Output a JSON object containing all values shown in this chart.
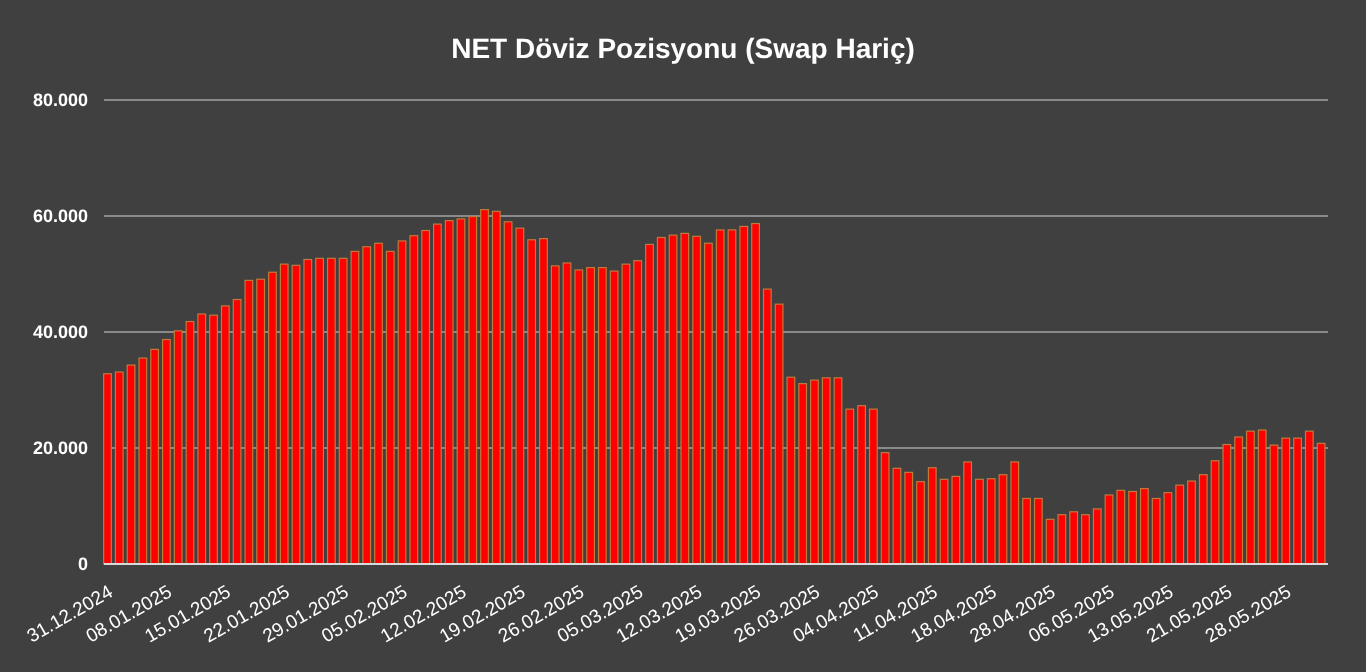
{
  "chart_data": {
    "type": "bar",
    "title": "NET Döviz Pozisyonu (Swap Hariç)",
    "categories": [
      "31.12.2024",
      null,
      null,
      null,
      null,
      "08.01.2025",
      null,
      null,
      null,
      null,
      "15.01.2025",
      null,
      null,
      null,
      null,
      "22.01.2025",
      null,
      null,
      null,
      null,
      "29.01.2025",
      null,
      null,
      null,
      null,
      "05.02.2025",
      null,
      null,
      null,
      null,
      "12.02.2025",
      null,
      null,
      null,
      null,
      "19.02.2025",
      null,
      null,
      null,
      null,
      "26.02.2025",
      null,
      null,
      null,
      null,
      "05.03.2025",
      null,
      null,
      null,
      null,
      "12.03.2025",
      null,
      null,
      null,
      null,
      "19.03.2025",
      null,
      null,
      null,
      null,
      "26.03.2025",
      null,
      null,
      null,
      null,
      "04.04.2025",
      null,
      null,
      null,
      null,
      "11.04.2025",
      null,
      null,
      null,
      null,
      "18.04.2025",
      null,
      null,
      null,
      null,
      "28.04.2025",
      null,
      null,
      null,
      null,
      "06.05.2025",
      null,
      null,
      null,
      null,
      "13.05.2025",
      null,
      null,
      null,
      null,
      "21.05.2025",
      null,
      null,
      null,
      null,
      "28.05.2025",
      null,
      null,
      null
    ],
    "series": [
      {
        "color": "#ff0000",
        "values": [
          32800,
          33100,
          34300,
          35500,
          37000,
          38700,
          40200,
          41800,
          43100,
          42900,
          44500,
          45600,
          48900,
          49100,
          50300,
          51700,
          51500,
          52500,
          52700,
          52700,
          52700,
          53900,
          54700,
          55300,
          53900,
          55700,
          56600,
          57500,
          58600,
          59200,
          59500,
          59900,
          61100,
          60800,
          59000,
          57900,
          55900,
          56100,
          51400,
          51900,
          50700,
          51100,
          51100,
          50500,
          51700,
          52300,
          55100,
          56300,
          56700,
          57000,
          56500,
          55300,
          57600,
          57600,
          58200,
          58700,
          47400,
          44800,
          32200,
          31100,
          31700,
          32100,
          32100,
          26700,
          27300,
          26700,
          19200,
          16500,
          15800,
          14200,
          16600,
          14600,
          15100,
          17600,
          14600,
          14700,
          15400,
          17600,
          11300,
          11300,
          7700,
          8500,
          9000,
          8500,
          9500,
          11900,
          12700,
          12500,
          13000,
          11300,
          12300,
          13600,
          14300,
          15400,
          17800,
          20600,
          21900,
          22900,
          23100,
          20500,
          21700,
          21700,
          22900,
          20800
        ]
      }
    ],
    "ylim": [
      0,
      80000
    ],
    "yticks": [
      {
        "value": 0,
        "label": "0"
      },
      {
        "value": 20000,
        "label": "20.000"
      },
      {
        "value": 40000,
        "label": "40.000"
      },
      {
        "value": 60000,
        "label": "60.000"
      },
      {
        "value": 80000,
        "label": "80.000"
      }
    ],
    "grid": "y"
  }
}
